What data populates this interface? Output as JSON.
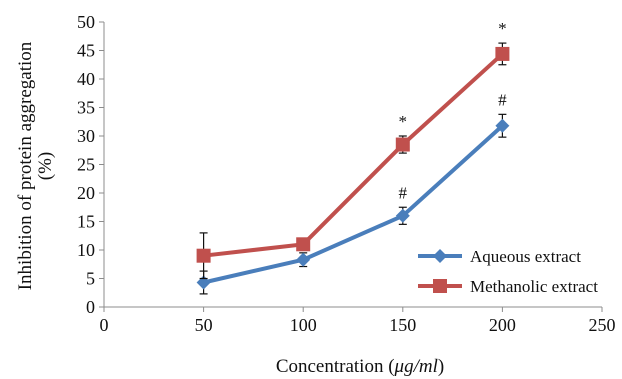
{
  "chart_data": {
    "type": "line",
    "title": "",
    "xlabel_prefix": "Concentration (",
    "xlabel_unit": "μg/ml",
    "xlabel_suffix": ")",
    "ylabel_line1": "Inhibition of protein aggregation",
    "ylabel_line2": "(%)",
    "xlim": [
      0,
      250
    ],
    "ylim": [
      0,
      50
    ],
    "x_ticks": [
      0,
      50,
      100,
      150,
      200,
      250
    ],
    "y_ticks": [
      0,
      5,
      10,
      15,
      20,
      25,
      30,
      35,
      40,
      45,
      50
    ],
    "x_tick_labels": [
      "0",
      "50",
      "100",
      "150",
      "200",
      "250"
    ],
    "y_tick_labels": [
      "0",
      "5",
      "10",
      "15",
      "20",
      "25",
      "30",
      "35",
      "40",
      "45",
      "50"
    ],
    "grid": false,
    "legend_position": "bottom-right",
    "series": [
      {
        "name": "Aqueous extract",
        "color": "#4a7ebb",
        "marker": "diamond",
        "x": [
          50,
          100,
          150,
          200
        ],
        "y": [
          4.3,
          8.3,
          16.0,
          31.8
        ],
        "error": [
          2.0,
          1.2,
          1.5,
          2.0
        ],
        "annotations": [
          "",
          "",
          "#",
          "#"
        ]
      },
      {
        "name": "Methanolic extract",
        "color": "#c0504d",
        "marker": "square",
        "x": [
          50,
          100,
          150,
          200
        ],
        "y": [
          9.0,
          11.0,
          28.5,
          44.4
        ],
        "error": [
          4.0,
          0.8,
          1.5,
          1.9
        ],
        "annotations": [
          "",
          "",
          "*",
          "*"
        ]
      }
    ]
  }
}
